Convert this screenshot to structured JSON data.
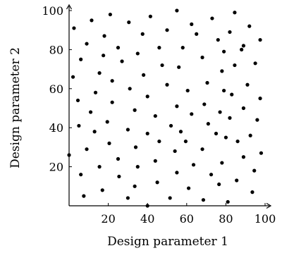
{
  "chart_data": {
    "type": "scatter",
    "title": "",
    "xlabel": "Design parameter 1",
    "ylabel": "Design parameter 2",
    "xlim": [
      0,
      100
    ],
    "ylim": [
      0,
      100
    ],
    "xticks": [
      20,
      40,
      60,
      80,
      100
    ],
    "yticks": [
      20,
      40,
      60,
      80,
      100
    ],
    "grid": false,
    "legend": "none",
    "marker_color": "#000000",
    "points": [
      [
        2.5,
        91
      ],
      [
        11.5,
        95
      ],
      [
        21,
        98
      ],
      [
        30.5,
        94
      ],
      [
        41.5,
        97
      ],
      [
        55,
        100
      ],
      [
        62.5,
        93
      ],
      [
        73,
        96
      ],
      [
        84.5,
        99
      ],
      [
        92,
        92
      ],
      [
        6,
        75
      ],
      [
        9,
        83
      ],
      [
        18,
        87
      ],
      [
        25,
        81
      ],
      [
        37.5,
        88
      ],
      [
        50,
        90
      ],
      [
        65,
        88
      ],
      [
        82,
        89
      ],
      [
        89,
        82
      ],
      [
        97.5,
        85
      ],
      [
        2,
        66
      ],
      [
        4.5,
        54
      ],
      [
        5,
        41
      ],
      [
        0,
        26
      ],
      [
        6,
        16
      ],
      [
        7.5,
        5
      ],
      [
        15.5,
        68
      ],
      [
        13.5,
        58
      ],
      [
        11,
        48
      ],
      [
        13,
        38
      ],
      [
        9,
        29
      ],
      [
        15.5,
        20
      ],
      [
        17,
        8
      ],
      [
        17.5,
        77
      ],
      [
        22,
        64
      ],
      [
        22,
        53
      ],
      [
        19.5,
        43
      ],
      [
        20.5,
        32
      ],
      [
        25,
        24
      ],
      [
        25.5,
        15
      ],
      [
        30,
        4
      ],
      [
        27,
        74
      ],
      [
        31,
        60
      ],
      [
        33.5,
        49
      ],
      [
        30,
        39
      ],
      [
        34,
        30
      ],
      [
        35,
        20
      ],
      [
        33.5,
        10
      ],
      [
        40,
        0
      ],
      [
        35,
        78
      ],
      [
        38,
        67
      ],
      [
        40,
        56
      ],
      [
        44,
        46
      ],
      [
        40,
        37
      ],
      [
        46,
        33
      ],
      [
        44,
        23
      ],
      [
        45,
        12
      ],
      [
        46,
        81
      ],
      [
        47.5,
        72
      ],
      [
        50,
        62
      ],
      [
        55,
        51
      ],
      [
        52,
        41
      ],
      [
        57,
        38
      ],
      [
        54,
        28
      ],
      [
        55,
        17
      ],
      [
        51.5,
        4
      ],
      [
        58,
        81
      ],
      [
        56,
        71
      ],
      [
        60.5,
        59
      ],
      [
        62.5,
        47
      ],
      [
        59.5,
        33
      ],
      [
        63.5,
        21
      ],
      [
        61,
        9
      ],
      [
        68.5,
        3
      ],
      [
        68,
        76
      ],
      [
        70.5,
        63
      ],
      [
        69,
        52
      ],
      [
        71,
        42
      ],
      [
        68,
        29
      ],
      [
        72.5,
        16
      ],
      [
        76.5,
        11
      ],
      [
        76,
        85
      ],
      [
        78,
        69
      ],
      [
        79,
        59
      ],
      [
        77,
        48
      ],
      [
        75,
        37
      ],
      [
        80,
        35
      ],
      [
        78,
        22
      ],
      [
        81,
        2
      ],
      [
        79,
        79
      ],
      [
        84.5,
        72
      ],
      [
        83,
        57
      ],
      [
        89,
        50
      ],
      [
        82,
        45
      ],
      [
        86,
        33
      ],
      [
        89,
        25
      ],
      [
        85.5,
        13
      ],
      [
        88,
        80
      ],
      [
        95,
        73
      ],
      [
        91,
        62
      ],
      [
        97.5,
        55
      ],
      [
        96,
        44
      ],
      [
        92.5,
        36
      ],
      [
        98,
        27
      ],
      [
        94.5,
        18
      ],
      [
        93.5,
        7
      ]
    ]
  }
}
